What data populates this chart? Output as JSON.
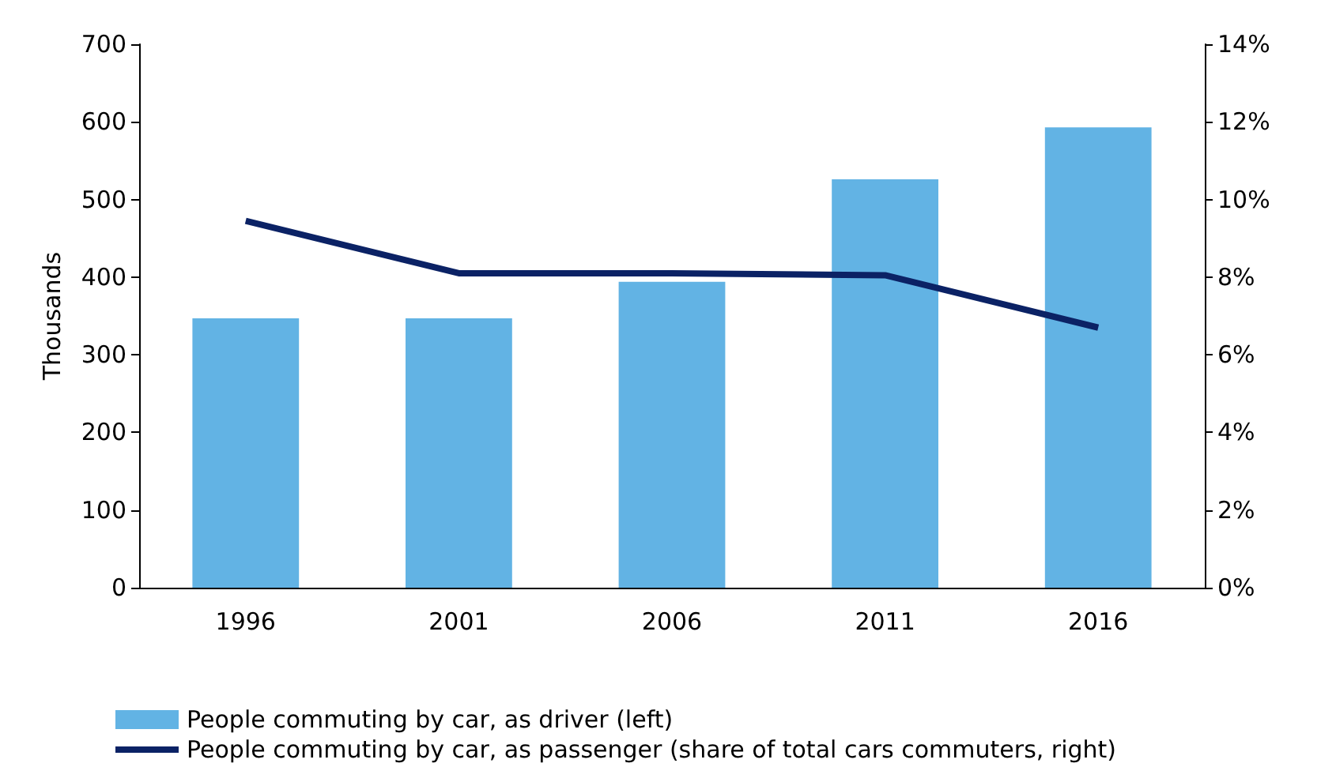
{
  "chart_data": {
    "type": "bar",
    "ylabel": "Thousands",
    "categories": [
      "1996",
      "2001",
      "2006",
      "2011",
      "2016"
    ],
    "series": [
      {
        "name": "People commuting by car, as driver (left)",
        "color": "#62b3e4",
        "values": [
          347,
          347,
          394,
          526,
          593
        ]
      },
      {
        "name": "People commuting by car, as passenger (share of total cars commuters, right)",
        "type": "line",
        "axis": "y2",
        "color": "#0b2265",
        "values": [
          9.45,
          8.1,
          8.1,
          8.05,
          6.7
        ]
      }
    ],
    "ylim": [
      0,
      700
    ],
    "yticks": [
      0,
      100,
      200,
      300,
      400,
      500,
      600,
      700
    ],
    "y2lim": [
      0,
      14
    ],
    "y2ticks": [
      {
        "value": 0,
        "label": "0%"
      },
      {
        "value": 2,
        "label": "2%"
      },
      {
        "value": 4,
        "label": "4%"
      },
      {
        "value": 6,
        "label": "6%"
      },
      {
        "value": 8,
        "label": "8%"
      },
      {
        "value": 10,
        "label": "10%"
      },
      {
        "value": 12,
        "label": "12%"
      },
      {
        "value": 14,
        "label": "14%"
      }
    ],
    "grid": false,
    "legend": "bottom",
    "marker": "none",
    "line_style": "solid"
  }
}
